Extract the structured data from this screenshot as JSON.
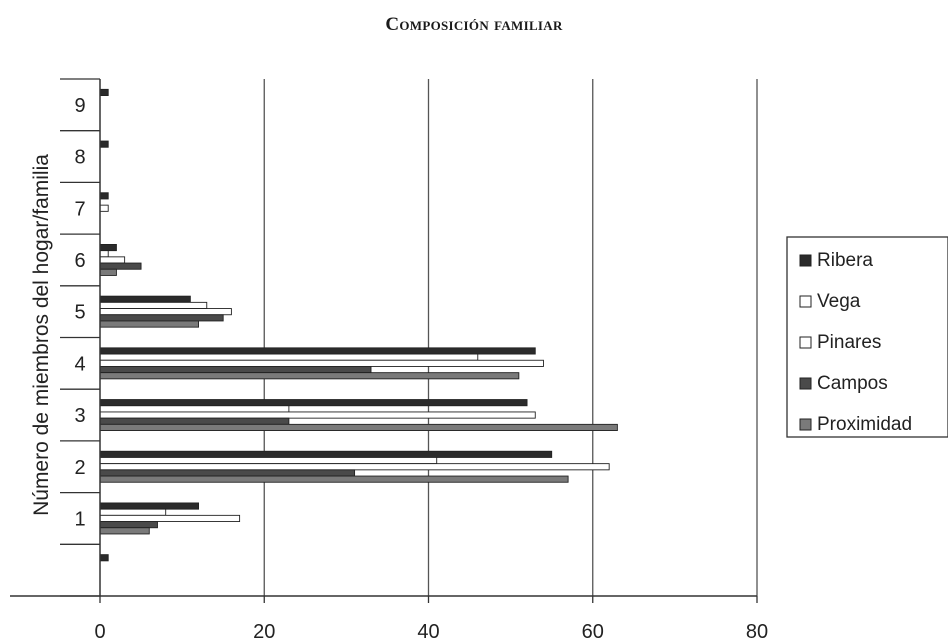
{
  "chart_data": {
    "type": "bar",
    "orientation": "horizontal",
    "title": "Composición familiar",
    "ylabel": "Número de miembros del hogar/familia",
    "xlabel": "",
    "categories": [
      "",
      "1",
      "2",
      "3",
      "4",
      "5",
      "6",
      "7",
      "8",
      "9"
    ],
    "x_ticks": [
      "0",
      "20",
      "40",
      "60",
      "80"
    ],
    "xlim": [
      0,
      80
    ],
    "grid": "vertical",
    "legend_position": "right",
    "series": [
      {
        "name": "Ribera",
        "color": "#2b2b2b",
        "values": [
          1,
          12,
          55,
          52,
          53,
          11,
          2,
          1,
          1,
          1
        ]
      },
      {
        "name": "Vega",
        "color": "#ffffff",
        "values": [
          0,
          8,
          41,
          23,
          46,
          13,
          1,
          0,
          0,
          0
        ]
      },
      {
        "name": "Pinares",
        "color": "#ffffff",
        "values": [
          0,
          17,
          62,
          53,
          54,
          16,
          3,
          1,
          0,
          0
        ]
      },
      {
        "name": "Campos",
        "color": "#4a4a4a",
        "values": [
          0,
          7,
          31,
          23,
          33,
          15,
          5,
          0,
          0,
          0
        ]
      },
      {
        "name": "Proximidad",
        "color": "#7a7a7a",
        "values": [
          0,
          6,
          57,
          63,
          51,
          12,
          2,
          0,
          0,
          0
        ]
      }
    ]
  }
}
